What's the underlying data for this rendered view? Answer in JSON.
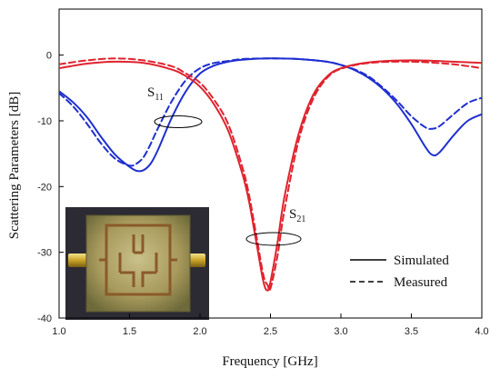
{
  "chart_data": {
    "type": "line",
    "xlabel": "Frequency [GHz]",
    "ylabel": "Scattering Parameters [dB]",
    "xlim": [
      1.0,
      4.0
    ],
    "ylim": [
      -40,
      7
    ],
    "xticks": [
      "1.0",
      "1.5",
      "2.0",
      "2.5",
      "3.0",
      "3.5",
      "4.0"
    ],
    "yticks": [
      "0",
      "-10",
      "-20",
      "-30",
      "-40"
    ],
    "grid": false,
    "legend": {
      "position": "bottom-right",
      "entries": [
        {
          "label": "Simulated",
          "style": "solid"
        },
        {
          "label": "Measured",
          "style": "dashed"
        }
      ]
    },
    "annotations": [
      {
        "base": "S",
        "sub": "11",
        "x": 1.65,
        "y": -11
      },
      {
        "base": "S",
        "sub": "21",
        "x": 2.47,
        "y": -30
      }
    ],
    "colors": {
      "S11": "#1f2fd0",
      "S21": "#e0232e"
    },
    "series": [
      {
        "param": "S11",
        "style": "solid",
        "x": [
          1.0,
          1.1,
          1.2,
          1.3,
          1.4,
          1.5,
          1.55,
          1.6,
          1.65,
          1.7,
          1.8,
          1.9,
          2.0,
          2.1,
          2.2,
          2.3,
          2.5,
          2.7,
          2.9,
          3.0,
          3.1,
          3.2,
          3.3,
          3.4,
          3.5,
          3.6,
          3.65,
          3.7,
          3.8,
          3.9,
          4.0
        ],
        "y": [
          -5.5,
          -7.2,
          -9.5,
          -12.5,
          -15.2,
          -17,
          -17.6,
          -17.5,
          -16.5,
          -14.5,
          -9.5,
          -5.5,
          -2.8,
          -1.6,
          -1,
          -0.7,
          -0.5,
          -0.6,
          -1,
          -1.5,
          -2.3,
          -3.5,
          -5.2,
          -7.5,
          -10.5,
          -14,
          -15.2,
          -14.8,
          -12.2,
          -10,
          -9
        ]
      },
      {
        "param": "S11",
        "style": "dashed",
        "x": [
          1.0,
          1.1,
          1.2,
          1.3,
          1.4,
          1.5,
          1.55,
          1.6,
          1.65,
          1.7,
          1.8,
          1.9,
          2.0,
          2.1,
          2.2,
          2.3,
          2.5,
          2.7,
          2.9,
          3.0,
          3.1,
          3.2,
          3.3,
          3.4,
          3.5,
          3.6,
          3.65,
          3.7,
          3.8,
          3.9,
          4.0
        ],
        "y": [
          -5.8,
          -7.8,
          -10.5,
          -13.5,
          -15.8,
          -16.8,
          -16.5,
          -15.5,
          -13.5,
          -11.2,
          -7,
          -3.8,
          -2,
          -1.2,
          -0.9,
          -0.6,
          -0.5,
          -0.6,
          -1,
          -1.5,
          -2.2,
          -3.3,
          -5,
          -7,
          -9.3,
          -11,
          -11.2,
          -10.8,
          -9,
          -7.3,
          -6.5
        ]
      },
      {
        "param": "S21",
        "style": "solid",
        "x": [
          1.0,
          1.2,
          1.4,
          1.6,
          1.8,
          1.9,
          2.0,
          2.1,
          2.2,
          2.3,
          2.35,
          2.4,
          2.45,
          2.48,
          2.5,
          2.55,
          2.6,
          2.7,
          2.8,
          2.9,
          3.0,
          3.2,
          3.5,
          3.8,
          4.0
        ],
        "y": [
          -2,
          -1.3,
          -1,
          -1.2,
          -2.2,
          -3.2,
          -4.8,
          -7.5,
          -11.5,
          -18,
          -22.5,
          -28.5,
          -34.5,
          -35.8,
          -34.5,
          -28.5,
          -21.5,
          -12,
          -6.2,
          -3.3,
          -2,
          -1.1,
          -0.8,
          -1,
          -1.2
        ]
      },
      {
        "param": "S21",
        "style": "dashed",
        "x": [
          1.0,
          1.2,
          1.4,
          1.6,
          1.8,
          1.9,
          2.0,
          2.1,
          2.2,
          2.3,
          2.35,
          2.4,
          2.45,
          2.48,
          2.5,
          2.55,
          2.6,
          2.7,
          2.8,
          2.9,
          3.0,
          3.2,
          3.5,
          3.8,
          4.0
        ],
        "y": [
          -1.4,
          -0.8,
          -0.5,
          -0.8,
          -1.7,
          -2.8,
          -4.2,
          -6.8,
          -10.5,
          -17,
          -21.5,
          -27.5,
          -33.5,
          -35,
          -35.5,
          -30.5,
          -23.5,
          -13,
          -6.8,
          -3.5,
          -2.1,
          -1.2,
          -1,
          -1.4,
          -2
        ]
      }
    ]
  }
}
